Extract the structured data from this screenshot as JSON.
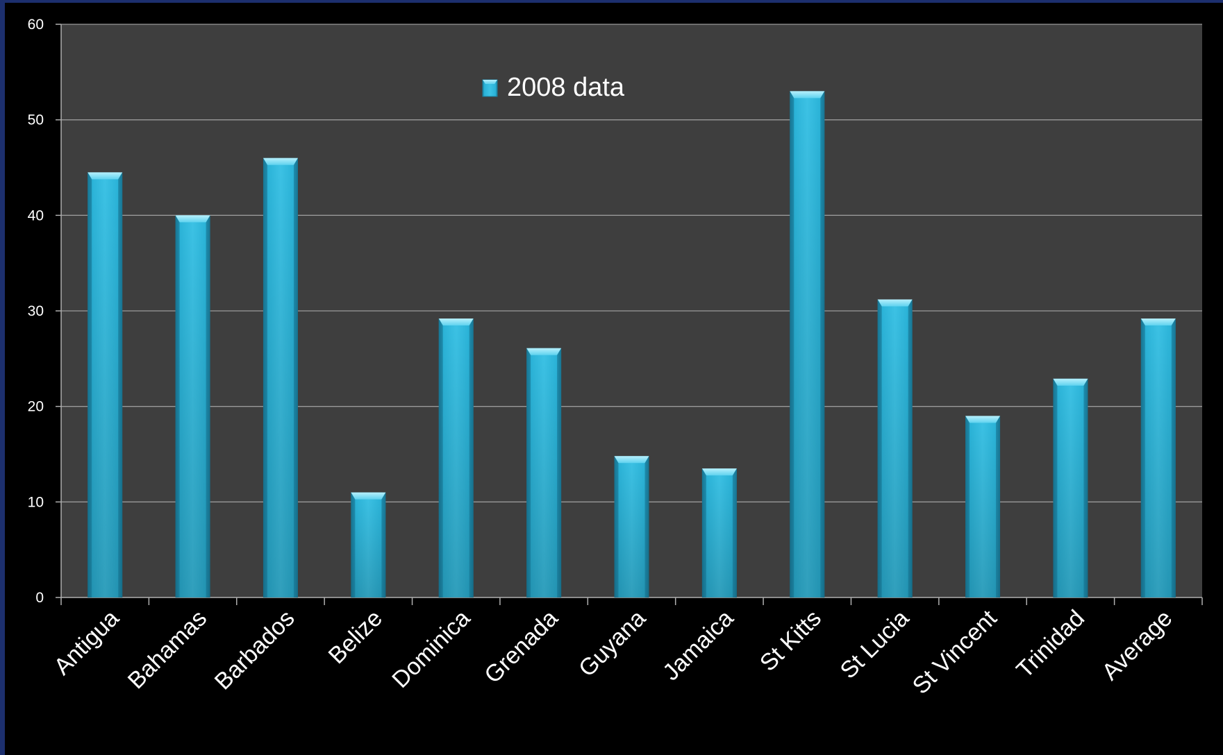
{
  "chart_data": {
    "type": "bar",
    "categories": [
      "Antigua",
      "Bahamas",
      "Barbados",
      "Belize",
      "Dominica",
      "Grenada",
      "Guyana",
      "Jamaica",
      "St Kitts",
      "St Lucia",
      "St Vincent",
      "Trinidad",
      "Average"
    ],
    "series": [
      {
        "name": "2008 data",
        "values": [
          44.5,
          40,
          46,
          11,
          29.2,
          26.1,
          14.8,
          13.5,
          53,
          31.2,
          19,
          22.9,
          29.2
        ]
      }
    ],
    "ylim": [
      0,
      60
    ],
    "yticks": [
      0,
      10,
      20,
      30,
      40,
      50,
      60
    ],
    "grid": true,
    "legend_position": "top-center",
    "colors": {
      "bar": "#2ab3d8",
      "bar_light": "#3fc4e6",
      "bar_dark": "#1e8fb0",
      "bar_top": "#8ee4f7",
      "plot_background": "#3e3e3e",
      "page_background": "#000000",
      "gridline": "#9a9a9a",
      "text": "#ffffff",
      "frame_accent": "#1c2f6e"
    }
  }
}
